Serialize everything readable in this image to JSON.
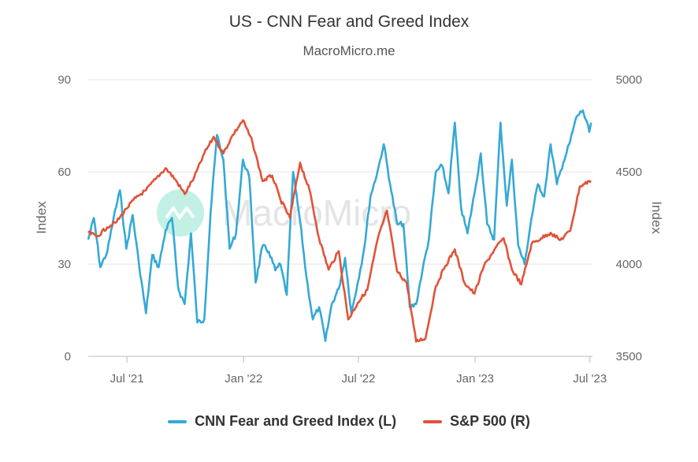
{
  "header": {
    "title": "US - CNN Fear and Greed Index",
    "subtitle": "MacroMicro.me"
  },
  "watermark": {
    "text": "MacroMicro",
    "icon": "macromicro-logo-icon"
  },
  "colors": {
    "fear_greed": "#35a9d5",
    "sp500": "#e0533a",
    "grid": "#e3e3e3",
    "watermark": "#8fe3cf"
  },
  "chart_data": {
    "type": "line",
    "title": "US - CNN Fear and Greed Index",
    "subtitle": "MacroMicro.me",
    "left_axis": {
      "label": "Index",
      "ticks": [
        0,
        30,
        60,
        90
      ],
      "range": [
        0,
        90
      ]
    },
    "right_axis": {
      "label": "Index",
      "ticks": [
        3500,
        4000,
        4500,
        5000
      ],
      "range": [
        3500,
        5000
      ]
    },
    "x_axis": {
      "ticks": [
        "Jul '21",
        "Jan '22",
        "Jul '22",
        "Jan '23",
        "Jul '23"
      ],
      "tick_dates": [
        "2021-07-01",
        "2022-01-01",
        "2022-07-01",
        "2023-01-01",
        "2023-07-01"
      ],
      "range": [
        "2021-05-01",
        "2023-07-05"
      ]
    },
    "grid": true,
    "legend_position": "bottom-center",
    "series": [
      {
        "name": "CNN Fear and Greed Index (L)",
        "axis": "left",
        "points": [
          [
            "2021-05-01",
            38
          ],
          [
            "2021-05-10",
            45
          ],
          [
            "2021-05-20",
            29
          ],
          [
            "2021-05-31",
            34
          ],
          [
            "2021-06-10",
            45
          ],
          [
            "2021-06-20",
            54
          ],
          [
            "2021-06-30",
            35
          ],
          [
            "2021-07-10",
            46
          ],
          [
            "2021-07-20",
            30
          ],
          [
            "2021-07-31",
            14
          ],
          [
            "2021-08-10",
            33
          ],
          [
            "2021-08-20",
            29
          ],
          [
            "2021-08-31",
            41
          ],
          [
            "2021-09-10",
            45
          ],
          [
            "2021-09-20",
            22
          ],
          [
            "2021-09-30",
            17
          ],
          [
            "2021-10-10",
            40
          ],
          [
            "2021-10-20",
            11
          ],
          [
            "2021-10-31",
            12
          ],
          [
            "2021-11-10",
            47
          ],
          [
            "2021-11-20",
            72
          ],
          [
            "2021-11-30",
            64
          ],
          [
            "2021-12-10",
            35
          ],
          [
            "2021-12-20",
            40
          ],
          [
            "2021-12-31",
            64
          ],
          [
            "2022-01-10",
            58
          ],
          [
            "2022-01-20",
            24
          ],
          [
            "2022-01-31",
            36
          ],
          [
            "2022-02-10",
            34
          ],
          [
            "2022-02-20",
            28
          ],
          [
            "2022-02-28",
            30
          ],
          [
            "2022-03-10",
            20
          ],
          [
            "2022-03-20",
            60
          ],
          [
            "2022-03-31",
            44
          ],
          [
            "2022-04-10",
            26
          ],
          [
            "2022-04-20",
            12
          ],
          [
            "2022-04-30",
            16
          ],
          [
            "2022-05-10",
            5
          ],
          [
            "2022-05-20",
            17
          ],
          [
            "2022-05-31",
            22
          ],
          [
            "2022-06-10",
            32
          ],
          [
            "2022-06-20",
            14
          ],
          [
            "2022-06-30",
            24
          ],
          [
            "2022-07-10",
            35
          ],
          [
            "2022-07-20",
            52
          ],
          [
            "2022-07-31",
            60
          ],
          [
            "2022-08-10",
            69
          ],
          [
            "2022-08-20",
            56
          ],
          [
            "2022-08-31",
            43
          ],
          [
            "2022-09-10",
            43
          ],
          [
            "2022-09-20",
            16
          ],
          [
            "2022-09-30",
            17
          ],
          [
            "2022-10-10",
            28
          ],
          [
            "2022-10-20",
            38
          ],
          [
            "2022-10-31",
            60
          ],
          [
            "2022-11-10",
            62
          ],
          [
            "2022-11-20",
            53
          ],
          [
            "2022-11-30",
            76
          ],
          [
            "2022-12-10",
            48
          ],
          [
            "2022-12-20",
            40
          ],
          [
            "2022-12-31",
            53
          ],
          [
            "2023-01-10",
            66
          ],
          [
            "2023-01-20",
            43
          ],
          [
            "2023-01-31",
            38
          ],
          [
            "2023-02-10",
            76
          ],
          [
            "2023-02-20",
            49
          ],
          [
            "2023-02-28",
            64
          ],
          [
            "2023-03-10",
            36
          ],
          [
            "2023-03-20",
            30
          ],
          [
            "2023-03-31",
            45
          ],
          [
            "2023-04-10",
            56
          ],
          [
            "2023-04-20",
            52
          ],
          [
            "2023-04-30",
            69
          ],
          [
            "2023-05-10",
            56
          ],
          [
            "2023-05-20",
            63
          ],
          [
            "2023-05-31",
            70
          ],
          [
            "2023-06-10",
            78
          ],
          [
            "2023-06-20",
            80
          ],
          [
            "2023-06-30",
            73
          ],
          [
            "2023-07-03",
            76
          ]
        ]
      },
      {
        "name": "S&P 500 (R)",
        "axis": "right",
        "points": [
          [
            "2021-05-01",
            4170
          ],
          [
            "2021-05-15",
            4150
          ],
          [
            "2021-05-31",
            4200
          ],
          [
            "2021-06-15",
            4230
          ],
          [
            "2021-06-30",
            4300
          ],
          [
            "2021-07-15",
            4360
          ],
          [
            "2021-07-31",
            4400
          ],
          [
            "2021-08-15",
            4460
          ],
          [
            "2021-08-31",
            4520
          ],
          [
            "2021-09-15",
            4460
          ],
          [
            "2021-09-30",
            4380
          ],
          [
            "2021-10-15",
            4470
          ],
          [
            "2021-10-31",
            4600
          ],
          [
            "2021-11-15",
            4690
          ],
          [
            "2021-11-30",
            4600
          ],
          [
            "2021-12-15",
            4700
          ],
          [
            "2021-12-31",
            4780
          ],
          [
            "2022-01-15",
            4660
          ],
          [
            "2022-01-31",
            4450
          ],
          [
            "2022-02-15",
            4480
          ],
          [
            "2022-02-28",
            4350
          ],
          [
            "2022-03-15",
            4250
          ],
          [
            "2022-03-31",
            4550
          ],
          [
            "2022-04-15",
            4400
          ],
          [
            "2022-04-30",
            4140
          ],
          [
            "2022-05-15",
            3970
          ],
          [
            "2022-05-31",
            4070
          ],
          [
            "2022-06-15",
            3700
          ],
          [
            "2022-06-30",
            3790
          ],
          [
            "2022-07-15",
            3860
          ],
          [
            "2022-07-31",
            4130
          ],
          [
            "2022-08-15",
            4290
          ],
          [
            "2022-08-31",
            3960
          ],
          [
            "2022-09-15",
            3900
          ],
          [
            "2022-09-30",
            3580
          ],
          [
            "2022-10-15",
            3600
          ],
          [
            "2022-10-31",
            3880
          ],
          [
            "2022-11-15",
            3990
          ],
          [
            "2022-11-30",
            4080
          ],
          [
            "2022-12-15",
            3900
          ],
          [
            "2022-12-31",
            3840
          ],
          [
            "2023-01-15",
            3990
          ],
          [
            "2023-01-31",
            4076
          ],
          [
            "2023-02-15",
            4140
          ],
          [
            "2023-02-28",
            3970
          ],
          [
            "2023-03-15",
            3890
          ],
          [
            "2023-03-31",
            4110
          ],
          [
            "2023-04-15",
            4140
          ],
          [
            "2023-04-30",
            4170
          ],
          [
            "2023-05-15",
            4130
          ],
          [
            "2023-05-31",
            4180
          ],
          [
            "2023-06-15",
            4420
          ],
          [
            "2023-06-30",
            4450
          ],
          [
            "2023-07-03",
            4450
          ]
        ]
      }
    ]
  },
  "legend": [
    {
      "label": "CNN Fear and Greed Index (L)",
      "color": "#35a9d5"
    },
    {
      "label": "S&P 500 (R)",
      "color": "#e0533a"
    }
  ]
}
